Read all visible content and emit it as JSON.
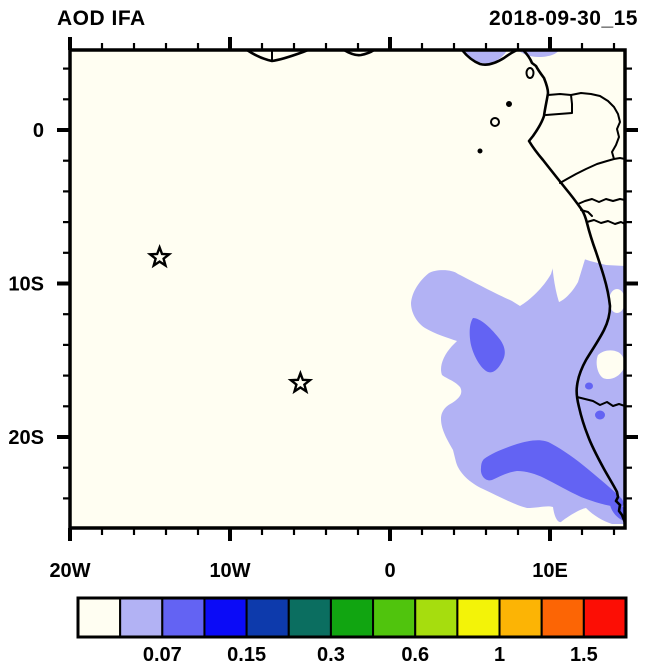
{
  "page": {
    "background": "#ffffff"
  },
  "header": {
    "title": "AOD IFA",
    "timestamp": "2018-09-30_15"
  },
  "colors": {
    "frame": "#000000",
    "coastline": "#000000",
    "map_background": "#fffef2",
    "aod_light": "#b2b2f4",
    "aod_medium": "#6363f3"
  },
  "chart_data": {
    "type": "heatmap",
    "title": "AOD IFA",
    "timestamp_label": "2018-09-30_15",
    "description": "Filled-contour map of aerosol optical depth over the SE Atlantic and West/Central African coast; only the two lowest shaded bins appear on the map",
    "x_axis": {
      "tick_labels": [
        "20W",
        "10W",
        "0",
        "10E"
      ],
      "tick_lons": [
        -20,
        -10,
        0,
        10
      ],
      "minor_tick_interval_deg": 2,
      "lon_range": [
        -20,
        14.7
      ]
    },
    "y_axis": {
      "tick_labels": [
        "0",
        "10S",
        "20S"
      ],
      "tick_lats": [
        0,
        -10,
        -20
      ],
      "minor_tick_interval_deg": 2,
      "lat_range": [
        5.2,
        -25.9
      ]
    },
    "colorbar": {
      "cell_colors": [
        "#fffef2",
        "#b2b2f4",
        "#6363f3",
        "#0b0bf7",
        "#0d3aac",
        "#0b6e60",
        "#11a511",
        "#50c40d",
        "#a6dd0e",
        "#f3f308",
        "#fcb405",
        "#fc6505",
        "#fc0e05"
      ],
      "labels": [
        "0.07",
        "0.15",
        "0.3",
        "0.6",
        "1",
        "1.5"
      ],
      "label_boundary_cell_index": [
        2,
        4,
        6,
        8,
        10,
        12
      ]
    },
    "markers": [
      {
        "shape": "open-star",
        "lon": -14.4,
        "lat": -8.3
      },
      {
        "shape": "open-star",
        "lon": -5.6,
        "lat": -16.5
      }
    ],
    "shaded_bins": [
      {
        "color": "#b2b2f4",
        "meaning": "lowest shaded AOD bin (up to 0.07)"
      },
      {
        "color": "#6363f3",
        "meaning": "second shaded AOD bin (0.07 to next level)"
      }
    ]
  }
}
